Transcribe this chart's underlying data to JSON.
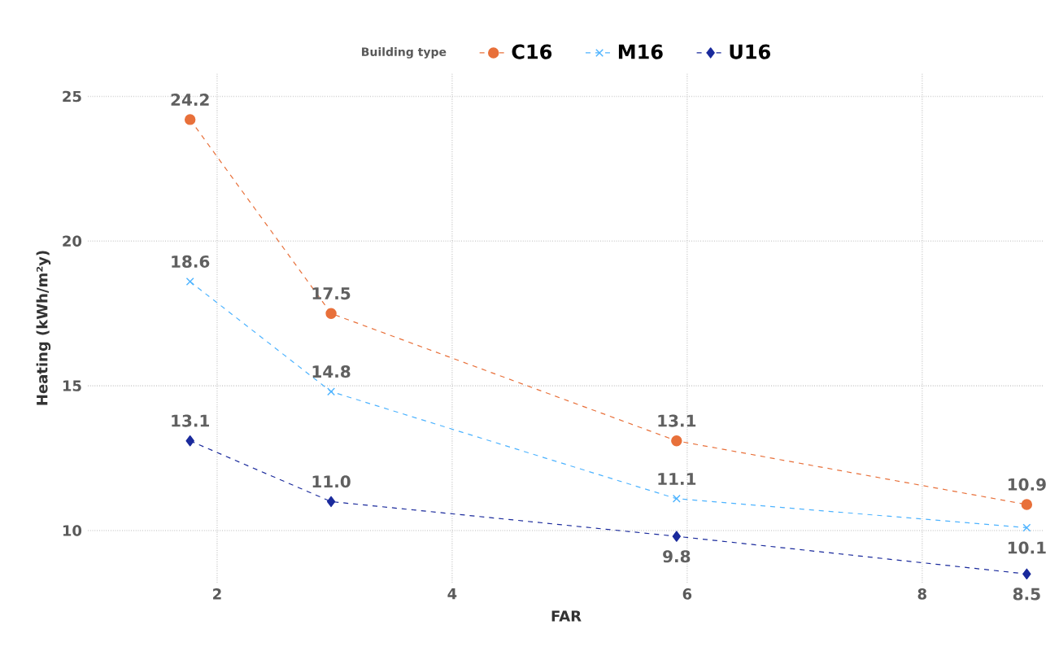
{
  "chart_data": {
    "type": "line",
    "xlabel": "FAR",
    "ylabel": "Heating (kWh/m²y)",
    "legend_title": "Building type",
    "x": [
      1.77,
      2.97,
      5.91,
      8.89
    ],
    "series": [
      {
        "name": "C16",
        "color": "#e8703a",
        "marker": "circle",
        "values": [
          24.2,
          17.5,
          13.1,
          10.9
        ],
        "value_labels": [
          "24.2",
          "17.5",
          "13.1",
          "10.9"
        ]
      },
      {
        "name": "M16",
        "color": "#4db3ff",
        "marker": "cross",
        "values": [
          18.6,
          14.8,
          11.1,
          10.1
        ],
        "value_labels": [
          "18.6",
          "14.8",
          "11.1",
          "10.1"
        ]
      },
      {
        "name": "U16",
        "color": "#1a2a9c",
        "marker": "diamond",
        "values": [
          13.1,
          11.0,
          9.8,
          8.5
        ],
        "value_labels": [
          "13.1",
          "11.0",
          "9.8",
          "8.5"
        ]
      }
    ],
    "xlim": [
      0.9,
      9.04
    ],
    "ylim": [
      8.2,
      25.8
    ],
    "xticks": [
      2,
      4,
      6,
      8
    ],
    "yticks": [
      10,
      15,
      20,
      25
    ],
    "grid": true,
    "legend": "top",
    "line_style": "dashed"
  }
}
